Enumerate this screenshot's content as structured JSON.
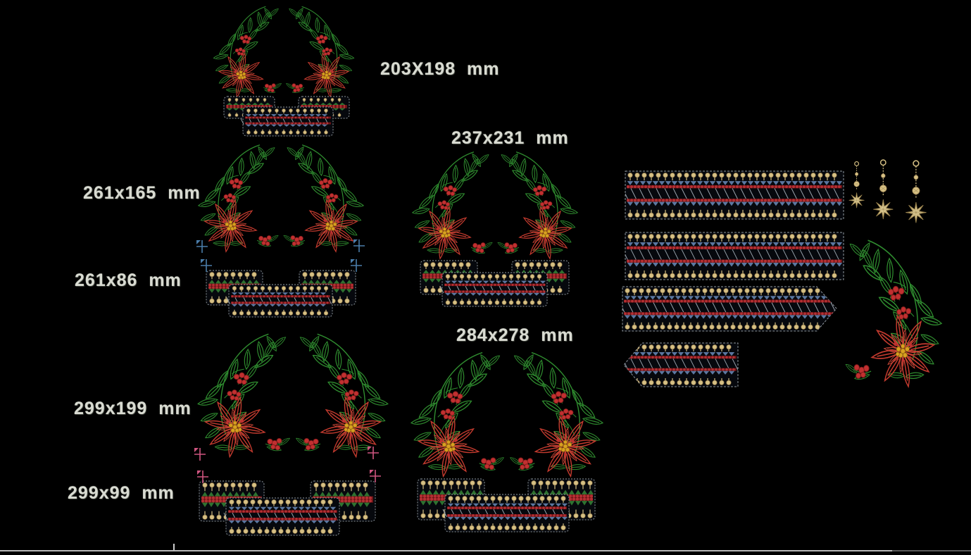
{
  "window": {
    "title": "Embroidery design canvas",
    "background": "#000000"
  },
  "labels": {
    "d203": "203X198  mm",
    "d237": "237x231  mm",
    "d261_wreath": "261x165  mm",
    "d261_border": "261x86  mm",
    "d284": "284x278  mm",
    "d299_wreath": "299x199  mm",
    "d299_border": "299x99  mm"
  },
  "designs": [
    {
      "name": "poinsettia-wreath-with-border",
      "size_label": "203X198  mm"
    },
    {
      "name": "poinsettia-wreath",
      "size_label": "261x165  mm"
    },
    {
      "name": "border-band",
      "size_label": "261x86  mm"
    },
    {
      "name": "poinsettia-wreath-with-border",
      "size_label": "237x231  mm"
    },
    {
      "name": "poinsettia-wreath",
      "size_label": "299x199  mm"
    },
    {
      "name": "border-band",
      "size_label": "299x99  mm"
    },
    {
      "name": "poinsettia-wreath-with-border",
      "size_label": "284x278  mm"
    },
    {
      "name": "border-strip-long",
      "size_label": ""
    },
    {
      "name": "border-strip-long",
      "size_label": ""
    },
    {
      "name": "border-strip-pointed-right",
      "size_label": ""
    },
    {
      "name": "border-strip-pointed-left",
      "size_label": ""
    },
    {
      "name": "hanging-star-ornaments",
      "size_label": ""
    },
    {
      "name": "corner-poinsettia-branch",
      "size_label": ""
    }
  ],
  "palette": {
    "leaf_green": "#2f8c2f",
    "triangle_green": "#2e7230",
    "flower_red": "#c23a2e",
    "flower_red_inner": "#d04838",
    "berry_red": "#c13030",
    "berry_edge": "#7d1b1b",
    "bead_red": "#b52f33",
    "bead_red_dark": "#6b1416",
    "gold": "#d6c084",
    "gold_dark": "#93794a",
    "flower_center_gold": "#d8a020",
    "triangle_blue": "#5b77a0",
    "hatch_gray": "#99a2ac",
    "outline_gray": "#8f979e",
    "block_fill": "#06080d",
    "label_text": "#d9dbd2",
    "marker_blue": "#4a7daa",
    "marker_pink": "#cf5580",
    "scrollbar_light": "#b9b9b9",
    "scrollbar_dark": "#5a5a5a",
    "scrollbar_tick": "#cccccc"
  }
}
